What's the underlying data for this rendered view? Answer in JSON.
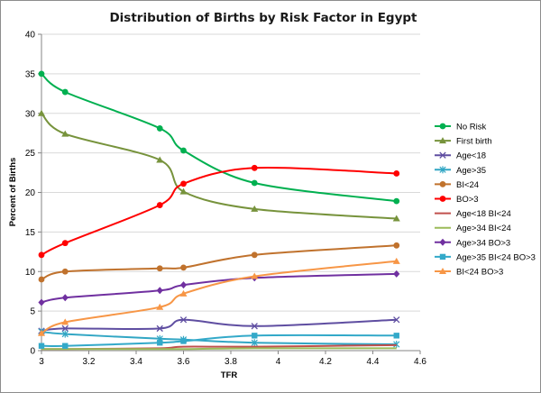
{
  "chart_data": {
    "type": "line",
    "title": "Distribution of Births by Risk Factor in Egypt",
    "xlabel": "TFR",
    "ylabel": "Percent of Births",
    "xlim": [
      3,
      4.6
    ],
    "ylim": [
      0,
      40
    ],
    "xticks": [
      "3",
      "3.2",
      "3.4",
      "3.6",
      "3.8",
      "4",
      "4.2",
      "4.4",
      "4.6"
    ],
    "yticks": [
      "0",
      "5",
      "10",
      "15",
      "20",
      "25",
      "30",
      "35",
      "40"
    ],
    "grid": true,
    "legend_position": "right",
    "x": [
      3.0,
      3.1,
      3.5,
      3.6,
      3.9,
      4.5
    ],
    "series": [
      {
        "name": "No Risk",
        "color": "#00b050",
        "marker": "circle",
        "values": [
          35.0,
          32.7,
          28.1,
          25.3,
          21.2,
          18.9
        ]
      },
      {
        "name": "First birth",
        "color": "#77933c",
        "marker": "triangle",
        "values": [
          30.0,
          27.4,
          24.1,
          20.1,
          17.9,
          16.7
        ]
      },
      {
        "name": "Age<18",
        "color": "#5f4ea1",
        "marker": "x",
        "values": [
          2.5,
          2.8,
          2.8,
          3.9,
          3.1,
          3.9
        ]
      },
      {
        "name": "Age>35",
        "color": "#31a6c4",
        "marker": "star",
        "values": [
          2.4,
          2.1,
          1.5,
          1.4,
          1.0,
          0.8
        ]
      },
      {
        "name": "BI<24",
        "color": "#c0722d",
        "marker": "circle",
        "values": [
          9.0,
          10.0,
          10.4,
          10.5,
          12.1,
          13.3
        ]
      },
      {
        "name": "BO>3",
        "color": "#ff0000",
        "marker": "circle",
        "values": [
          12.1,
          13.6,
          18.4,
          21.1,
          23.1,
          22.4
        ]
      },
      {
        "name": "Age<18 BI<24",
        "color": "#c0504d",
        "marker": "none",
        "values": [
          0.2,
          0.2,
          0.3,
          0.5,
          0.5,
          0.7
        ]
      },
      {
        "name": "Age>34 BI<24",
        "color": "#9bbb59",
        "marker": "none",
        "values": [
          0.2,
          0.2,
          0.2,
          0.2,
          0.3,
          0.3
        ]
      },
      {
        "name": "Age>34 BO>3",
        "color": "#7030a0",
        "marker": "diamond",
        "values": [
          6.1,
          6.7,
          7.6,
          8.3,
          9.2,
          9.7
        ]
      },
      {
        "name": "Age>35 BI<24 BO>3",
        "color": "#33a9c9",
        "marker": "square",
        "values": [
          0.6,
          0.6,
          1.0,
          1.2,
          1.9,
          1.9
        ]
      },
      {
        "name": "BI<24 BO>3",
        "color": "#f79646",
        "marker": "triangle",
        "values": [
          2.2,
          3.6,
          5.5,
          7.2,
          9.4,
          11.3
        ]
      }
    ]
  }
}
